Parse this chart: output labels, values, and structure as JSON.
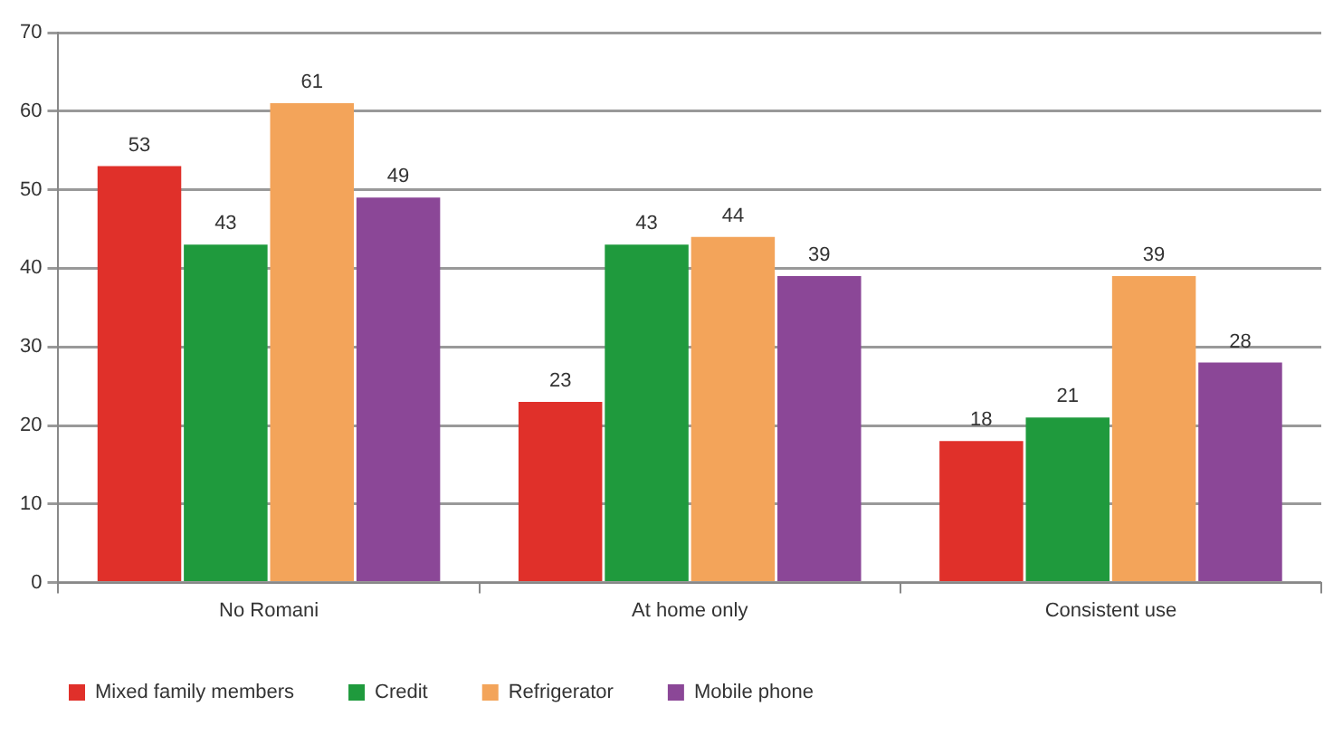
{
  "chart_data": {
    "type": "bar",
    "categories": [
      "No Romani",
      "At home only",
      "Consistent use"
    ],
    "series": [
      {
        "name": "Mixed family members",
        "color": "#e0302a",
        "values": [
          53,
          23,
          18
        ]
      },
      {
        "name": "Credit",
        "color": "#1f9a3d",
        "values": [
          43,
          43,
          21
        ]
      },
      {
        "name": "Refrigerator",
        "color": "#f3a45a",
        "values": [
          61,
          44,
          39
        ]
      },
      {
        "name": "Mobile phone",
        "color": "#8b4797",
        "values": [
          49,
          39,
          28
        ]
      }
    ],
    "ylim": [
      0,
      70
    ],
    "yticks": [
      0,
      10,
      20,
      30,
      40,
      50,
      60,
      70
    ],
    "grid": "y",
    "legend": "bottom left",
    "data_labels": true
  }
}
